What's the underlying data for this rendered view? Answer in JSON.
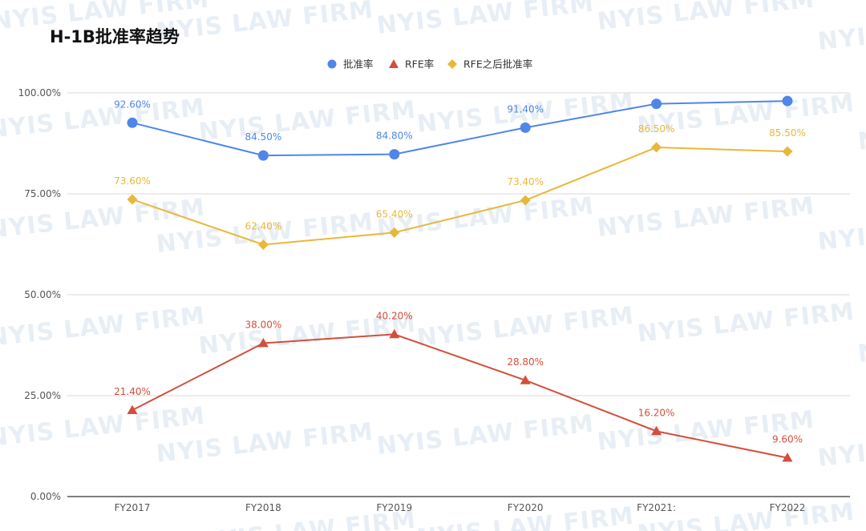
{
  "watermark_text": "NYIS LAW FIRM",
  "chart_data": {
    "type": "line",
    "title": "H-1B批准率趋势",
    "xlabel": "",
    "ylabel": "",
    "categories": [
      "FY2017",
      "FY2018",
      "FY2019",
      "FY2020",
      "FY2021:",
      "FY2022"
    ],
    "ylim": [
      0,
      100
    ],
    "yticks": [
      "0.00%",
      "25.00%",
      "50.00%",
      "75.00%",
      "100.00%"
    ],
    "ytick_values": [
      0,
      25,
      50,
      75,
      100
    ],
    "grid": true,
    "legend_position": "top-center",
    "series": [
      {
        "name": "批准率",
        "color": "#4f86e8",
        "marker": "circle",
        "values": [
          92.6,
          84.5,
          84.8,
          91.4,
          97.3,
          98.0
        ],
        "labels": [
          "92.60%",
          "84.50%",
          "84.80%",
          "91.40%",
          "",
          ""
        ]
      },
      {
        "name": "RFE率",
        "color": "#d24f3c",
        "marker": "triangle",
        "values": [
          21.4,
          38.0,
          40.2,
          28.8,
          16.2,
          9.6
        ],
        "labels": [
          "21.40%",
          "38.00%",
          "40.20%",
          "28.80%",
          "16.20%",
          "9.60%"
        ]
      },
      {
        "name": "RFE之后批准率",
        "color": "#e8b839",
        "marker": "diamond",
        "values": [
          73.6,
          62.4,
          65.4,
          73.4,
          86.5,
          85.5
        ],
        "labels": [
          "73.60%",
          "62.40%",
          "65.40%",
          "73.40%",
          "86.50%",
          "85.50%"
        ]
      }
    ]
  }
}
